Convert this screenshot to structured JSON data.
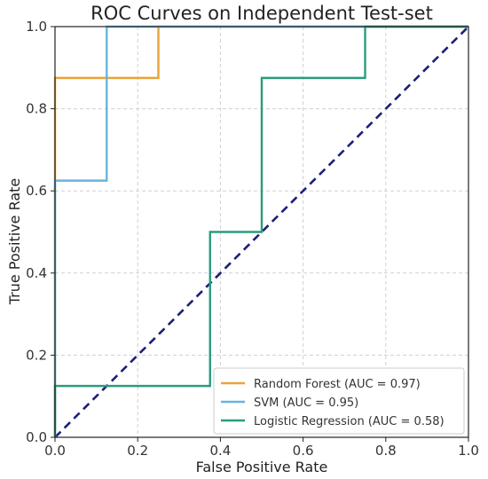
{
  "chart_data": {
    "type": "line",
    "title": "ROC Curves on Independent Test-set",
    "xlabel": "False Positive Rate",
    "ylabel": "True Positive Rate",
    "xlim": [
      0.0,
      1.0
    ],
    "ylim": [
      0.0,
      1.0
    ],
    "xticks": [
      "0.0",
      "0.2",
      "0.4",
      "0.6",
      "0.8",
      "1.0"
    ],
    "yticks": [
      "0.0",
      "0.2",
      "0.4",
      "0.6",
      "0.8",
      "1.0"
    ],
    "grid": true,
    "legend_position": "lower-right",
    "series": [
      {
        "name": "Random Forest (AUC = 0.97)",
        "color": "#e8a33a",
        "x": [
          0.0,
          0.0,
          0.25,
          0.25,
          1.0
        ],
        "y": [
          0.0,
          0.875,
          0.875,
          1.0,
          1.0
        ]
      },
      {
        "name": "SVM (AUC = 0.95)",
        "color": "#6ab4dc",
        "x": [
          0.0,
          0.0,
          0.125,
          0.125,
          1.0
        ],
        "y": [
          0.0,
          0.625,
          0.625,
          1.0,
          1.0
        ]
      },
      {
        "name": "Logistic Regression (AUC = 0.58)",
        "color": "#2a9c7e",
        "x": [
          0.0,
          0.0,
          0.375,
          0.375,
          0.5,
          0.5,
          0.75,
          0.75,
          1.0
        ],
        "y": [
          0.0,
          0.125,
          0.125,
          0.5,
          0.5,
          0.875,
          0.875,
          1.0,
          1.0
        ]
      }
    ],
    "reference_line": {
      "x": [
        0.0,
        1.0
      ],
      "y": [
        0.0,
        1.0
      ],
      "color": "#1a1f7a",
      "style": "dashed"
    }
  }
}
